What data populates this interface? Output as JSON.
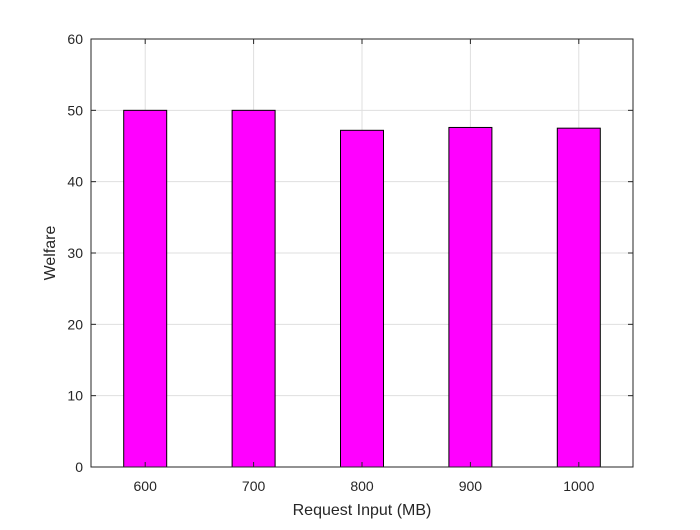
{
  "chart_data": {
    "type": "bar",
    "title": "",
    "xlabel": "Request Input (MB)",
    "ylabel": "Welfare",
    "categories": [
      "600",
      "700",
      "800",
      "900",
      "1000"
    ],
    "values": [
      50.0,
      50.0,
      47.2,
      47.6,
      47.5
    ],
    "ylim": [
      0,
      60
    ],
    "yticks": [
      "0",
      "10",
      "20",
      "30",
      "40",
      "50",
      "60"
    ],
    "grid": true,
    "legend": "none",
    "bar_color": "#ff00ff",
    "bar_edge_color": "#000000"
  }
}
